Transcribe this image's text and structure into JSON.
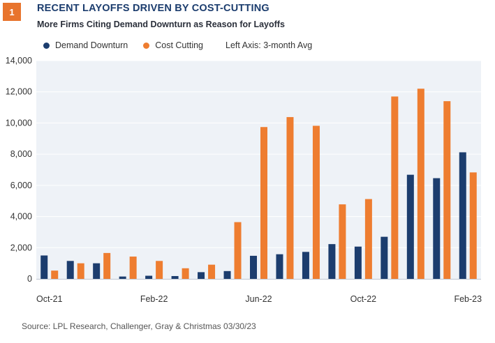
{
  "header": {
    "badge": "1",
    "title": "RECENT LAYOFFS DRIVEN BY COST-CUTTING",
    "subtitle": "More Firms Citing Demand Downturn as Reason for Layoffs"
  },
  "legend": {
    "note": "Left Axis: 3-month Avg"
  },
  "source": "Source: LPL Research, Challenger, Gray & Christmas  03/30/23",
  "colors": {
    "demand": "#1c3d6e",
    "cost": "#ee7d30",
    "plot_bg": "#eef2f7",
    "grid": "#ffffff"
  },
  "chart_data": {
    "type": "bar",
    "categories": [
      "Oct-21",
      "Nov-21",
      "Dec-21",
      "Jan-22",
      "Feb-22",
      "Mar-22",
      "Apr-22",
      "May-22",
      "Jun-22",
      "Jul-22",
      "Aug-22",
      "Sep-22",
      "Oct-22",
      "Nov-22",
      "Dec-22",
      "Jan-23",
      "Feb-23"
    ],
    "x_tick_labels": [
      "Oct-21",
      "",
      "",
      "",
      "Feb-22",
      "",
      "",
      "",
      "Jun-22",
      "",
      "",
      "",
      "Oct-22",
      "",
      "",
      "",
      "Feb-23"
    ],
    "series": [
      {
        "name": "Demand Downturn",
        "values": [
          1500,
          1150,
          1000,
          150,
          200,
          180,
          430,
          500,
          1480,
          1580,
          1730,
          2230,
          2070,
          2700,
          6680,
          6460,
          8120
        ]
      },
      {
        "name": "Cost Cutting",
        "values": [
          530,
          1000,
          1660,
          1430,
          1150,
          680,
          910,
          3640,
          9740,
          10380,
          9820,
          4780,
          5120,
          11700,
          12200,
          11400,
          6830
        ]
      }
    ],
    "y_ticks": [
      "0",
      "2,000",
      "4,000",
      "6,000",
      "8,000",
      "10,000",
      "12,000",
      "14,000"
    ],
    "ylim": [
      0,
      14000
    ],
    "grid": true,
    "legend_position": "top"
  }
}
